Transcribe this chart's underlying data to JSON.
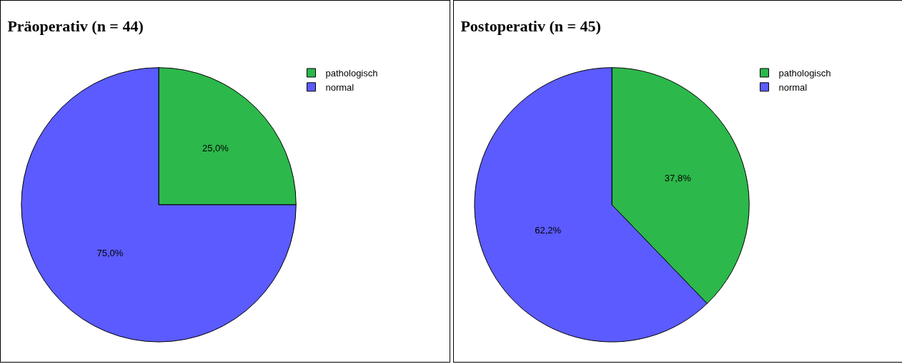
{
  "chart_data": [
    {
      "type": "pie",
      "title": "Präoperativ (n = 44)",
      "categories": [
        "pathologisch",
        "normal"
      ],
      "values": [
        25.0,
        75.0
      ],
      "colors": [
        "#2db84b",
        "#5b5bff"
      ],
      "value_labels": [
        "25,0%",
        "75,0%"
      ],
      "legend": "top right"
    },
    {
      "type": "pie",
      "title": "Postoperativ (n = 45)",
      "categories": [
        "pathologisch",
        "normal"
      ],
      "values": [
        37.8,
        62.2
      ],
      "colors": [
        "#2db84b",
        "#5b5bff"
      ],
      "value_labels": [
        "37,8%",
        "62,2%"
      ],
      "legend": "top right"
    }
  ]
}
